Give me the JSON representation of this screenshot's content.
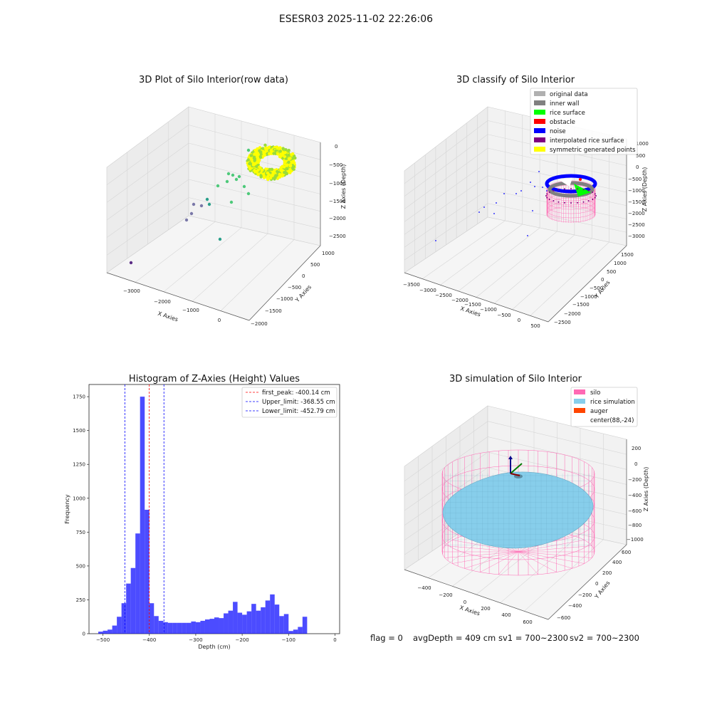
{
  "figure": {
    "title": "ESESR03 2025-11-02 22:26:06",
    "footer": {
      "flag": "flag = 0",
      "avg_depth": "avgDepth = 409 cm",
      "sv1": "sv1 = 700~2300",
      "sv2": "sv2 = 700~2300"
    }
  },
  "chart_data": [
    {
      "type": "scatter",
      "title": "3D Plot of Silo Interior(row data)",
      "xlabel": "X Axies",
      "ylabel": "Y Axies",
      "zlabel": "Z Axies (Depth)",
      "x_ticks": [
        "−3000",
        "−2000",
        "−1000",
        "0"
      ],
      "y_ticks": [
        "1000",
        "500",
        "0",
        "−500",
        "−1000",
        "−1500",
        "−2000"
      ],
      "z_ticks": [
        "0",
        "−500",
        "−1000",
        "−1500",
        "−2000",
        "−2500"
      ],
      "colors": [
        "#ffff00",
        "#9adb3a",
        "#4ec97a",
        "#2a9f8a",
        "#7a78a8",
        "#5c2d86"
      ]
    },
    {
      "type": "scatter",
      "title": "3D classify of Silo Interior",
      "xlabel": "X Axies",
      "ylabel": "Y Axies",
      "zlabel": "Z Axies (Depth)",
      "x_ticks": [
        "−3500",
        "−3000",
        "−2500",
        "−2000",
        "−1500",
        "−1000",
        "−500",
        "0",
        "500"
      ],
      "y_ticks": [
        "1500",
        "1000",
        "500",
        "0",
        "−500",
        "−1000",
        "−1500",
        "−2000",
        "−2500"
      ],
      "z_ticks": [
        "1000",
        "500",
        "0",
        "−500",
        "−1000",
        "−1500",
        "−2000",
        "−2500",
        "−3000"
      ],
      "legend": [
        {
          "name": "original data",
          "color": "#b0b0b0"
        },
        {
          "name": "inner wall",
          "color": "#808080"
        },
        {
          "name": "rice surface",
          "color": "#00ff00"
        },
        {
          "name": "obstacle",
          "color": "#ff0000"
        },
        {
          "name": "noise",
          "color": "#0000ff"
        },
        {
          "name": "interpolated rice surface",
          "color": "#800080"
        },
        {
          "name": "symmetric generated points",
          "color": "#ffff00"
        }
      ],
      "legend_position": "top-right"
    },
    {
      "type": "bar",
      "title": "Histogram of Z-Axies (Height) Values",
      "xlabel": "Depth (cm)",
      "ylabel": "Frequency",
      "xlim": [
        -530,
        10
      ],
      "ylim": [
        0,
        1840
      ],
      "x_ticks": [
        -500,
        -400,
        -300,
        -200,
        -100,
        0
      ],
      "y_ticks": [
        0,
        250,
        500,
        750,
        1000,
        1250,
        1500,
        1750
      ],
      "bin_width": 10,
      "bin_edges_start": -510,
      "values": [
        15,
        22,
        30,
        60,
        125,
        225,
        370,
        485,
        740,
        1750,
        915,
        225,
        130,
        95,
        85,
        80,
        80,
        80,
        80,
        80,
        90,
        85,
        95,
        105,
        110,
        120,
        115,
        150,
        170,
        235,
        155,
        140,
        165,
        220,
        170,
        195,
        245,
        290,
        215,
        130,
        145,
        20,
        30,
        50,
        125
      ],
      "bar_color": "#0000ff",
      "lines": [
        {
          "label": "first_peak: -400.14 cm",
          "x": -400.14,
          "color": "#ff0000"
        },
        {
          "label": "Upper_limit: -368.55 cm",
          "x": -368.55,
          "color": "#0000ff"
        },
        {
          "label": "Lower_limit: -452.79 cm",
          "x": -452.79,
          "color": "#0000ff"
        }
      ],
      "legend_position": "top-right"
    },
    {
      "type": "scatter",
      "title": "3D simulation of Silo Interior",
      "xlabel": "X Axies",
      "ylabel": "Y Axies",
      "zlabel": "Z Axies (Depth)",
      "x_ticks": [
        "−400",
        "−200",
        "0",
        "200",
        "400",
        "600"
      ],
      "y_ticks": [
        "600",
        "400",
        "200",
        "0",
        "−200",
        "−400",
        "−600"
      ],
      "z_ticks": [
        "200",
        "0",
        "−200",
        "−400",
        "−600",
        "−800",
        "−1000"
      ],
      "legend": [
        {
          "name": "silo",
          "color": "#ff69b4"
        },
        {
          "name": "rice simulation",
          "color": "#87ceeb"
        },
        {
          "name": "auger",
          "color": "#ff4500"
        },
        {
          "name": "center(88,-24)",
          "color": "#ffffff"
        }
      ],
      "legend_position": "top-right"
    }
  ]
}
